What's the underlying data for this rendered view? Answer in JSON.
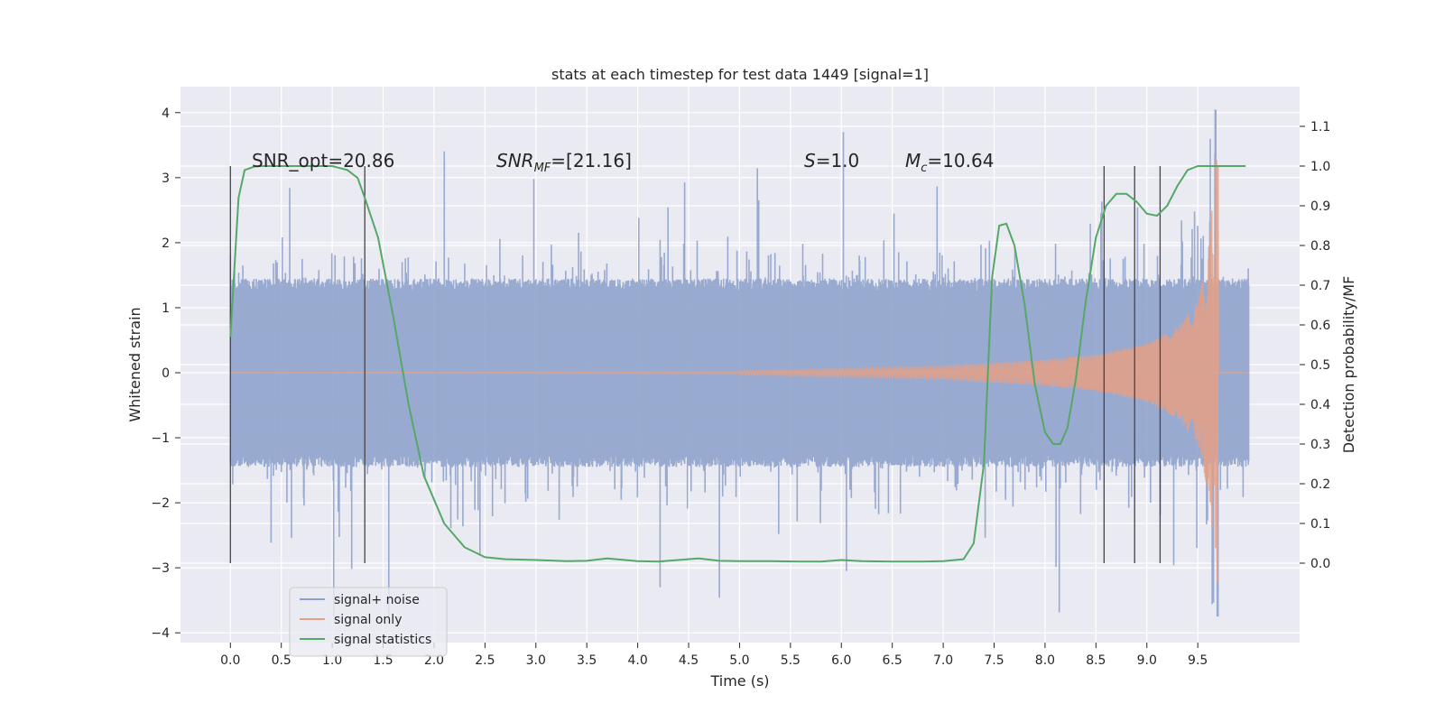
{
  "chart_data": {
    "type": "line",
    "title": "stats at each timestep for test data 1449 [signal=1]",
    "xlabel": "Time (s)",
    "ylabel": "Whitened strain",
    "ylabel_right": "Detection probability/MF",
    "xlim": [
      -0.49,
      10.5
    ],
    "ylim": [
      -4.15,
      4.4
    ],
    "ylim_right": [
      -0.2,
      1.2
    ],
    "x_ticks": [
      0.0,
      0.5,
      1.0,
      1.5,
      2.0,
      2.5,
      3.0,
      3.5,
      4.0,
      4.5,
      5.0,
      5.5,
      6.0,
      6.5,
      7.0,
      7.5,
      8.0,
      8.5,
      9.0,
      9.5
    ],
    "x_tick_labels": [
      "0.0",
      "0.5",
      "1.0",
      "1.5",
      "2.0",
      "2.5",
      "3.0",
      "3.5",
      "4.0",
      "4.5",
      "5.0",
      "5.5",
      "6.0",
      "6.5",
      "7.0",
      "7.5",
      "8.0",
      "8.5",
      "9.0",
      "9.5"
    ],
    "y_ticks": [
      -4,
      -3,
      -2,
      -1,
      0,
      1,
      2,
      3,
      4
    ],
    "y_tick_labels": [
      "−4",
      "−3",
      "−2",
      "−1",
      "0",
      "1",
      "2",
      "3",
      "4"
    ],
    "y_right_ticks": [
      0.0,
      0.1,
      0.2,
      0.3,
      0.4,
      0.5,
      0.6,
      0.7,
      0.8,
      0.9,
      1.0,
      1.1
    ],
    "y_right_tick_labels": [
      "0.0",
      "0.1",
      "0.2",
      "0.3",
      "0.4",
      "0.5",
      "0.6",
      "0.7",
      "0.8",
      "0.9",
      "1.0",
      "1.1"
    ],
    "grid": true,
    "legend_position": "lower-left",
    "annotations": [
      {
        "text": "SNR_opt=20.86",
        "x": 0.2,
        "y": 3.18
      },
      {
        "text": "SNR_MF=[21.16]",
        "x": 2.6,
        "y": 3.18
      },
      {
        "text": "S=1.0",
        "x": 5.62,
        "y": 3.18
      },
      {
        "text": "M_c=10.64",
        "x": 6.62,
        "y": 3.18
      }
    ],
    "vertical_markers": [
      0.0,
      1.32,
      8.58,
      8.88,
      9.13
    ],
    "series": [
      {
        "name": "signal+ noise",
        "color": "#8da0cb",
        "axis": "left",
        "t_range": [
          0.0,
          10.0
        ],
        "envelope": {
          "core_amplitude": 1.35,
          "peak_amplitude": 2.4,
          "extreme_min": -3.75,
          "extreme_max": 4.05
        }
      },
      {
        "name": "signal only",
        "color": "#e5a085",
        "axis": "left",
        "t_range": [
          0.0,
          10.0
        ],
        "chirp": {
          "merger_time": 9.7,
          "envelope_x": [
            5.0,
            6.0,
            7.0,
            8.0,
            8.5,
            9.0,
            9.3,
            9.5,
            9.6,
            9.68
          ],
          "envelope_y": [
            0.03,
            0.06,
            0.1,
            0.2,
            0.28,
            0.45,
            0.7,
            1.1,
            1.8,
            3.3
          ]
        }
      },
      {
        "name": "signal statistics",
        "color": "#55a868",
        "axis": "right",
        "x": [
          0.0,
          0.08,
          0.14,
          0.25,
          0.5,
          0.8,
          1.0,
          1.15,
          1.25,
          1.32,
          1.45,
          1.6,
          1.75,
          1.9,
          2.1,
          2.3,
          2.5,
          2.7,
          3.0,
          3.3,
          3.5,
          3.7,
          4.0,
          4.2,
          4.4,
          4.6,
          4.8,
          5.0,
          5.3,
          5.6,
          5.8,
          6.0,
          6.2,
          6.5,
          6.8,
          7.0,
          7.2,
          7.3,
          7.4,
          7.48,
          7.55,
          7.62,
          7.7,
          7.8,
          7.9,
          8.0,
          8.08,
          8.15,
          8.22,
          8.3,
          8.4,
          8.5,
          8.6,
          8.7,
          8.8,
          8.9,
          9.0,
          9.1,
          9.2,
          9.3,
          9.4,
          9.5,
          9.6,
          9.7,
          9.8,
          9.9,
          9.97
        ],
        "y": [
          0.57,
          0.92,
          0.99,
          1.0,
          1.0,
          1.0,
          1.0,
          0.99,
          0.97,
          0.92,
          0.82,
          0.62,
          0.4,
          0.22,
          0.1,
          0.04,
          0.015,
          0.01,
          0.008,
          0.005,
          0.006,
          0.012,
          0.005,
          0.004,
          0.008,
          0.012,
          0.006,
          0.005,
          0.005,
          0.004,
          0.004,
          0.008,
          0.005,
          0.004,
          0.004,
          0.005,
          0.01,
          0.05,
          0.25,
          0.72,
          0.85,
          0.855,
          0.8,
          0.65,
          0.45,
          0.33,
          0.3,
          0.3,
          0.34,
          0.46,
          0.66,
          0.82,
          0.9,
          0.93,
          0.93,
          0.91,
          0.88,
          0.875,
          0.9,
          0.95,
          0.99,
          1.0,
          1.0,
          1.0,
          1.0,
          1.0,
          1.0
        ]
      }
    ]
  }
}
